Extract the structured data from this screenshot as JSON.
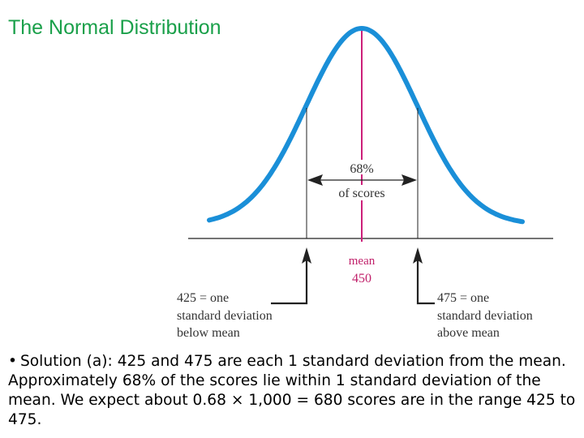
{
  "title": "The Normal Distribution",
  "figure": {
    "center_label": "68%",
    "center_sublabel": "of scores",
    "mean_label": "mean",
    "mean_value": "450",
    "left_note": [
      "425 = one",
      "standard deviation",
      "below mean"
    ],
    "right_note": [
      "475 = one",
      "standard deviation",
      "above mean"
    ],
    "percent_within_one_sd": 68,
    "mean": 450,
    "sd": 25,
    "colors": {
      "curve": "#1a8fd8",
      "mean_line": "#cc1f7a",
      "mean_text": "#c0206a",
      "title": "#1aa04a"
    }
  },
  "body": {
    "bullet": "•",
    "text": "Solution (a): 425 and 475 are each 1 standard deviation from the mean. Approximately 68% of the scores lie within 1 standard deviation of the mean.  We expect about 0.68 × 1,000 = 680 scores are in the range 425 to 475."
  }
}
